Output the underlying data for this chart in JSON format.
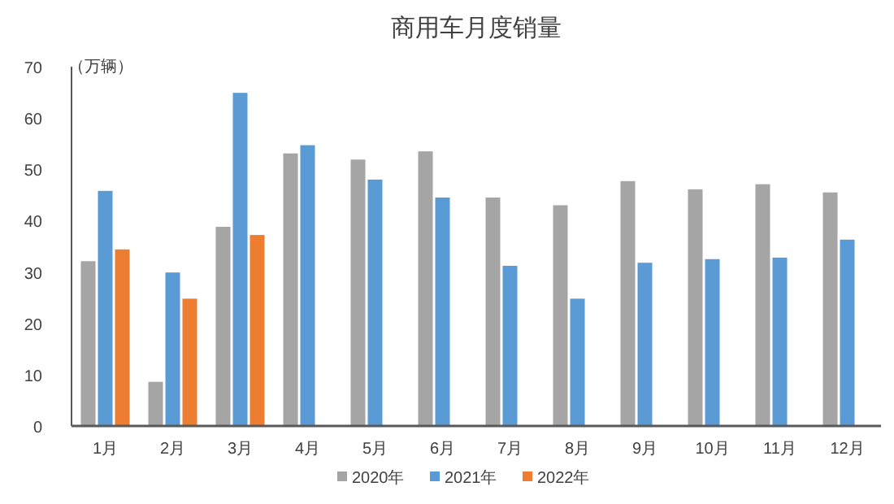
{
  "chart_data": {
    "type": "bar",
    "title": "商用车月度销量",
    "ylabel": "（万辆）",
    "categories": [
      "1月",
      "2月",
      "3月",
      "4月",
      "5月",
      "6月",
      "7月",
      "8月",
      "9月",
      "10月",
      "11月",
      "12月"
    ],
    "series": [
      {
        "name": "2020年",
        "color": "#a5a5a5",
        "values": [
          32.1,
          8.6,
          38.8,
          53.1,
          51.9,
          53.5,
          44.5,
          43.0,
          47.7,
          46.1,
          47.1,
          45.5
        ]
      },
      {
        "name": "2021年",
        "color": "#5b9bd5",
        "values": [
          45.8,
          29.9,
          64.9,
          54.7,
          48.0,
          44.5,
          31.2,
          24.8,
          31.8,
          32.5,
          32.8,
          36.3
        ]
      },
      {
        "name": "2022年",
        "color": "#ed7d31",
        "values": [
          34.4,
          24.8,
          37.2,
          null,
          null,
          null,
          null,
          null,
          null,
          null,
          null,
          null
        ]
      }
    ],
    "ylim": [
      0,
      70
    ],
    "yticks": [
      0,
      10,
      20,
      30,
      40,
      50,
      60,
      70
    ],
    "grid": false,
    "legend": "bottom"
  }
}
